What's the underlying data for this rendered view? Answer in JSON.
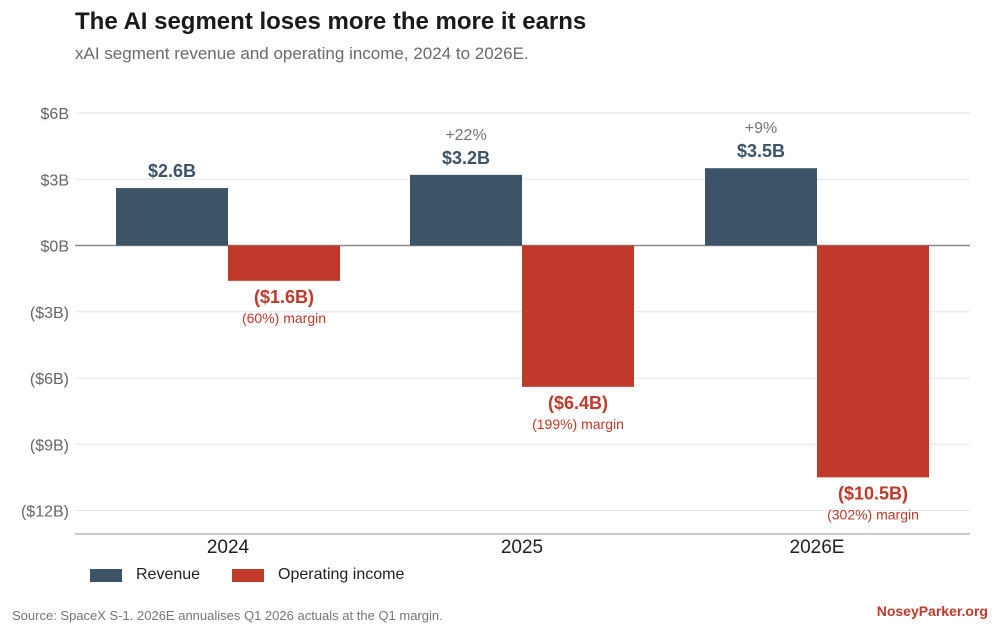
{
  "header": {
    "title": "The AI segment loses more the more it earns",
    "subtitle": "xAI segment revenue and operating income, 2024 to 2026E."
  },
  "colors": {
    "revenue": "#3d5468",
    "operating_income": "#c0392b",
    "brand": "#c0392b"
  },
  "chart_data": {
    "type": "bar",
    "categories": [
      "2024",
      "2025",
      "2026E"
    ],
    "series": [
      {
        "name": "Revenue",
        "values": [
          2.6,
          3.2,
          3.5
        ]
      },
      {
        "name": "Operating income",
        "values": [
          -1.6,
          -6.4,
          -10.5
        ]
      }
    ],
    "ylim": [
      -13,
      6
    ],
    "yticks": [
      6,
      3,
      0,
      -3,
      -6,
      -9,
      -12
    ],
    "ytick_labels": [
      "$6B",
      "$3B",
      "$0B",
      "($3B)",
      "($6B)",
      "($9B)",
      "($12B)"
    ],
    "revenue_labels": [
      "$2.6B",
      "$3.2B",
      "$3.5B"
    ],
    "growth_labels": [
      "",
      "+22%",
      "+9%"
    ],
    "income_labels": [
      "($1.6B)",
      "($6.4B)",
      "($10.5B)"
    ],
    "margin_labels": [
      "(60%) margin",
      "(199%) margin",
      "(302%) margin"
    ],
    "grid": true,
    "legend_position": "bottom-left"
  },
  "legend": {
    "revenue_label": "Revenue",
    "income_label": "Operating income"
  },
  "footer": {
    "source": "Source: SpaceX S-1. 2026E annualises Q1 2026 actuals at the Q1 margin.",
    "brand": "NoseyParker.org"
  }
}
